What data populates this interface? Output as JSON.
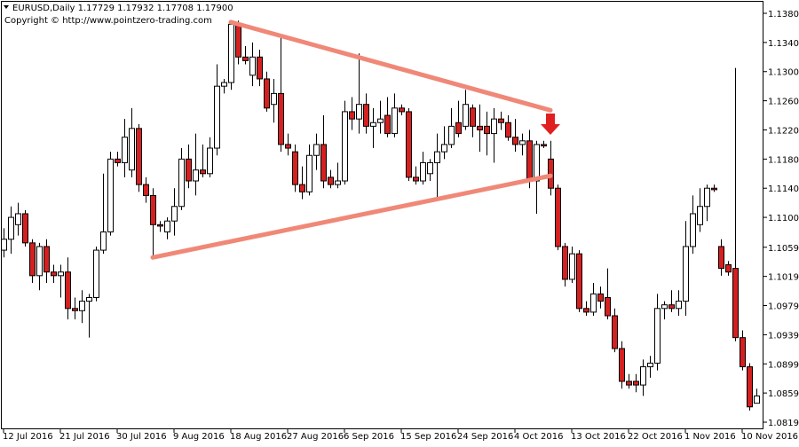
{
  "chart_data": {
    "type": "candlestick",
    "title": "EURUSD,Daily  1.17729 1.17932 1.17708 1.17900",
    "subtitle": "Copyright © http://www.pointzero-trading.com",
    "categories": [
      "12 Jul 2016",
      null,
      null,
      null,
      null,
      null,
      null,
      null,
      "21 Jul 2016",
      null,
      null,
      null,
      null,
      null,
      null,
      null,
      "30 Jul 2016",
      null,
      null,
      null,
      null,
      null,
      null,
      null,
      "9 Aug 2016",
      null,
      null,
      null,
      null,
      null,
      null,
      null,
      "18 Aug 2016",
      null,
      null,
      null,
      null,
      null,
      null,
      null,
      "27 Aug 2016",
      null,
      null,
      null,
      null,
      null,
      null,
      null,
      "6 Sep 2016",
      null,
      null,
      null,
      null,
      null,
      null,
      null,
      "15 Sep 2016",
      null,
      null,
      null,
      null,
      null,
      null,
      null,
      "24 Sep 2016",
      null,
      null,
      null,
      null,
      null,
      null,
      null,
      "4 Oct 2016",
      null,
      null,
      null,
      null,
      null,
      null,
      null,
      "13 Oct 2016",
      null,
      null,
      null,
      null,
      null,
      null,
      null,
      "22 Oct 2016",
      null,
      null,
      null,
      null,
      null,
      null,
      null,
      "1 Nov 2016",
      null,
      null,
      null,
      null,
      null,
      null,
      null,
      "10 Nov 2016",
      null,
      null
    ],
    "open": [
      1.1055,
      1.107,
      1.109,
      1.1105,
      1.1065,
      1.102,
      1.106,
      1.1025,
      1.102,
      1.1025,
      1.0975,
      1.0972,
      1.0985,
      1.099,
      1.1055,
      1.108,
      1.118,
      1.1175,
      1.1165,
      1.1222,
      1.1145,
      1.113,
      1.109,
      1.108,
      1.1095,
      1.1115,
      1.118,
      1.115,
      1.1165,
      1.116,
      1.1195,
      1.128,
      1.1285,
      1.1365,
      1.132,
      1.1295,
      1.132,
      1.129,
      1.1255,
      1.127,
      1.12,
      1.119,
      1.1145,
      1.1135,
      1.1185,
      1.12,
      1.1155,
      1.1145,
      1.115,
      1.1245,
      1.1235,
      1.1255,
      1.1225,
      1.123,
      1.124,
      1.1215,
      1.125,
      1.1245,
      1.1155,
      1.115,
      1.116,
      1.1175,
      1.119,
      1.12,
      1.123,
      1.1225,
      1.125,
      1.1225,
      1.1225,
      1.1215,
      1.1235,
      1.123,
      1.121,
      1.12,
      1.1205,
      1.115,
      1.12,
      1.118,
      1.114,
      1.106,
      1.1015,
      1.105,
      1.0975,
      1.097,
      1.0995,
      1.099,
      1.0965,
      1.092,
      1.0875,
      1.0875,
      1.087,
      1.0895,
      1.09,
      1.0975,
      1.098,
      1.0975,
      1.0985,
      1.106,
      1.109,
      1.1115,
      1.114,
      1.106,
      1.1035,
      1.103,
      1.0935,
      1.0895,
      1.0845
    ],
    "high": [
      1.1085,
      1.1115,
      1.112,
      1.111,
      1.107,
      1.1065,
      1.107,
      1.1035,
      1.1035,
      1.1045,
      1.099,
      1.1,
      1.0995,
      1.106,
      1.116,
      1.119,
      1.119,
      1.1235,
      1.125,
      1.1228,
      1.1155,
      1.114,
      1.1095,
      1.11,
      1.114,
      1.1195,
      1.12,
      1.1215,
      1.12,
      1.121,
      1.131,
      1.129,
      1.137,
      1.137,
      1.1335,
      1.134,
      1.133,
      1.13,
      1.129,
      1.135,
      1.1215,
      1.12,
      1.117,
      1.12,
      1.1215,
      1.124,
      1.1165,
      1.1175,
      1.126,
      1.1265,
      1.1325,
      1.127,
      1.125,
      1.126,
      1.1265,
      1.127,
      1.1255,
      1.125,
      1.117,
      1.119,
      1.118,
      1.1215,
      1.1225,
      1.125,
      1.126,
      1.1275,
      1.1255,
      1.1255,
      1.1245,
      1.125,
      1.1245,
      1.124,
      1.1235,
      1.1215,
      1.122,
      1.1205,
      1.1205,
      1.1205,
      1.1145,
      1.1065,
      1.106,
      1.1055,
      1.0985,
      1.101,
      1.1005,
      1.103,
      1.0975,
      1.093,
      1.0885,
      1.0885,
      1.0905,
      1.091,
      1.0995,
      1.0985,
      1.1,
      1.1,
      1.1095,
      1.113,
      1.114,
      1.1145,
      1.1145,
      1.107,
      1.104,
      1.1305,
      1.0945,
      1.09,
      1.0865
    ],
    "low": [
      1.1045,
      1.105,
      1.1075,
      1.106,
      1.101,
      1.1,
      1.101,
      1.101,
      1.099,
      1.096,
      1.096,
      1.0955,
      1.0935,
      1.0985,
      1.105,
      1.1075,
      1.117,
      1.1155,
      1.1155,
      1.1135,
      1.112,
      1.1045,
      1.108,
      1.107,
      1.1075,
      1.111,
      1.114,
      1.113,
      1.1155,
      1.1155,
      1.1185,
      1.127,
      1.1275,
      1.131,
      1.131,
      1.128,
      1.128,
      1.1245,
      1.123,
      1.119,
      1.1185,
      1.1135,
      1.1125,
      1.113,
      1.1165,
      1.114,
      1.114,
      1.114,
      1.1145,
      1.122,
      1.1215,
      1.1215,
      1.1195,
      1.1215,
      1.121,
      1.121,
      1.124,
      1.115,
      1.1145,
      1.1145,
      1.115,
      1.1125,
      1.118,
      1.1195,
      1.121,
      1.122,
      1.121,
      1.119,
      1.1185,
      1.1175,
      1.122,
      1.1205,
      1.119,
      1.1185,
      1.114,
      1.1105,
      1.1195,
      1.113,
      1.1055,
      1.1005,
      1.101,
      1.097,
      1.0965,
      1.0965,
      1.0975,
      1.096,
      1.0915,
      1.0865,
      1.0865,
      1.086,
      1.0855,
      1.088,
      1.089,
      1.096,
      1.097,
      1.0965,
      1.0965,
      1.105,
      1.108,
      1.1095,
      1.1135,
      1.102,
      1.102,
      1.093,
      1.089,
      1.0835,
      1.0845
    ],
    "close": [
      1.107,
      1.11,
      1.1105,
      1.1065,
      1.102,
      1.106,
      1.1025,
      1.102,
      1.1025,
      1.0975,
      1.0972,
      1.0985,
      1.099,
      1.1055,
      1.108,
      1.118,
      1.1175,
      1.121,
      1.1222,
      1.1145,
      1.113,
      1.109,
      1.1088,
      1.1095,
      1.1115,
      1.118,
      1.115,
      1.1165,
      1.116,
      1.1195,
      1.128,
      1.1285,
      1.1365,
      1.132,
      1.1315,
      1.132,
      1.129,
      1.125,
      1.127,
      1.12,
      1.1195,
      1.1145,
      1.1135,
      1.1185,
      1.12,
      1.115,
      1.1145,
      1.115,
      1.1245,
      1.1235,
      1.1255,
      1.1225,
      1.123,
      1.1235,
      1.1215,
      1.125,
      1.1245,
      1.1155,
      1.115,
      1.1175,
      1.1175,
      1.119,
      1.12,
      1.1225,
      1.1215,
      1.1255,
      1.1225,
      1.122,
      1.1215,
      1.1235,
      1.123,
      1.121,
      1.12,
      1.1205,
      1.115,
      1.12,
      1.1198,
      1.114,
      1.106,
      1.1015,
      1.105,
      1.0975,
      1.097,
      1.0995,
      1.0985,
      1.0965,
      1.092,
      1.0875,
      1.087,
      1.087,
      1.0895,
      1.09,
      1.0975,
      1.098,
      1.0975,
      1.0985,
      1.106,
      1.1105,
      1.1115,
      1.114,
      1.1138,
      1.103,
      1.1025,
      1.0935,
      1.0895,
      1.084,
      1.0855
    ],
    "up_color": "#ffffff",
    "down_color": "#d42020",
    "trendline_color": "#f08878",
    "trendlines": [
      {
        "x": [
          32,
          77
        ],
        "y": [
          1.1368,
          1.1247
        ]
      },
      {
        "x": [
          21,
          77
        ],
        "y": [
          1.1045,
          1.1157
        ]
      }
    ],
    "ylim": [
      1.0819,
      1.138
    ],
    "yticks": [
      {
        "value": 1.0819,
        "label": "1.08190"
      },
      {
        "value": 1.0859,
        "label": "1.08590"
      },
      {
        "value": 1.0899,
        "label": "1.08990"
      },
      {
        "value": 1.0939,
        "label": "1.09390"
      },
      {
        "value": 1.0979,
        "label": "1.09790"
      },
      {
        "value": 1.1019,
        "label": "1.10190"
      },
      {
        "value": 1.1059,
        "label": "1.10590"
      },
      {
        "value": 1.11,
        "label": "1.11000"
      },
      {
        "value": 1.114,
        "label": "1.11400"
      },
      {
        "value": 1.118,
        "label": "1.11800"
      },
      {
        "value": 1.122,
        "label": "1.12200"
      },
      {
        "value": 1.126,
        "label": "1.12600"
      },
      {
        "value": 1.13,
        "label": "1.13000"
      },
      {
        "value": 1.134,
        "label": "1.13400"
      },
      {
        "value": 1.138,
        "label": "1.13800"
      }
    ]
  }
}
